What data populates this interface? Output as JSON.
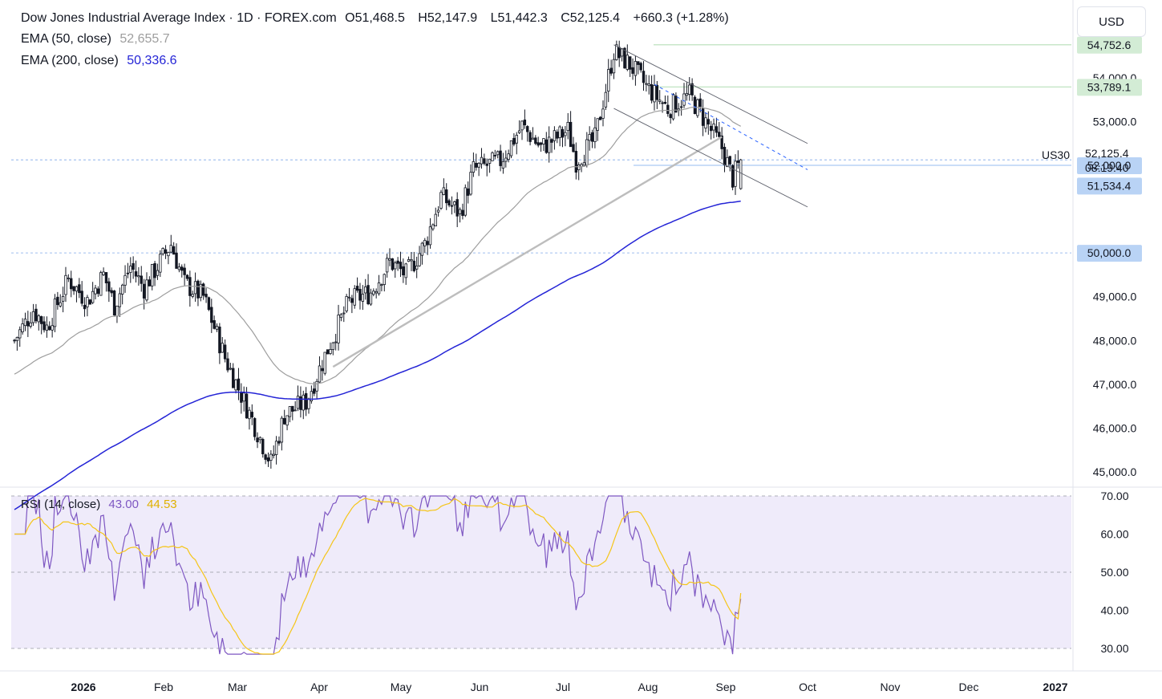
{
  "header": {
    "title": "Dow Jones Industrial Average Index · 1D · FOREX.com",
    "open_label": "O",
    "open": "51,468.5",
    "high_label": "H",
    "high": "52,147.9",
    "low_label": "L",
    "low": "51,442.3",
    "close_label": "C",
    "close": "52,125.4",
    "change": "+660.3 (+1.28%)",
    "currency_button": "USD"
  },
  "indicators": {
    "ema50": {
      "label": "EMA (50, close)",
      "value": "52,655.7",
      "color": "#9e9e9e"
    },
    "ema200": {
      "label": "EMA (200, close)",
      "value": "50,336.6",
      "color": "#2424d6"
    },
    "rsi": {
      "label": "RSI (14, close)",
      "value": "43.00",
      "ma_value": "44.53",
      "color": "#7e57c2",
      "ma_color": "#f2c94c"
    }
  },
  "colors": {
    "candle": "#131722",
    "ema50": "#9e9e9e",
    "ema200": "#2424d6",
    "rsi": "#7e57c2",
    "rsi_ma": "#f5c518",
    "rsi_band": "#efebfa",
    "green_tag": "#d3ecd5",
    "blue_tag": "#b9d3f5",
    "channel": "#5d606b",
    "dashed_trend": "#2962ff"
  },
  "chart_data": {
    "type": "candlestick",
    "symbol": "US30",
    "timeframe": "1D",
    "price_axis": {
      "ticks": [
        "54,000.0",
        "53,000.0",
        "52,000.0",
        "49,000.0",
        "48,000.0",
        "47,000.0",
        "46,000.0",
        "45,000.0"
      ],
      "tick_values": [
        54000,
        53000,
        52000,
        49000,
        48000,
        47000,
        46000,
        45000
      ],
      "range": [
        44800,
        55100
      ]
    },
    "time_axis": {
      "labels": [
        "2026",
        "Feb",
        "Mar",
        "Apr",
        "May",
        "Jun",
        "Jul",
        "Aug",
        "Sep",
        "Oct",
        "Nov",
        "Dec",
        "2027"
      ],
      "bold": [
        "2026",
        "2027"
      ]
    },
    "price_tags": [
      {
        "label": "54,752.6",
        "value": 54752.6,
        "style": "green"
      },
      {
        "label": "53,789.1",
        "value": 53789.1,
        "style": "green"
      },
      {
        "label": "52,000.0",
        "value": 52000,
        "style": "blue"
      },
      {
        "label": "51,534.4",
        "value": 51534.4,
        "style": "blue"
      },
      {
        "label": "50,000.0",
        "value": 50000,
        "style": "blue"
      }
    ],
    "current_price": {
      "value": "52,125.4",
      "countdown": "08:19:40",
      "symbol": "US30",
      "level": 52125.4
    },
    "horizontal_levels": [
      52125.4,
      50000
    ],
    "ema50_last": 52655.7,
    "ema200_last": 50336.6,
    "rsi": {
      "ticks": [
        "70.00",
        "60.00",
        "50.00",
        "40.00",
        "30.00"
      ],
      "tick_values": [
        70,
        60,
        50,
        40,
        30
      ],
      "range": [
        28,
        72
      ],
      "last": 43.0,
      "ma_last": 44.53
    },
    "approx_monthly_path": [
      {
        "month": "Jan",
        "close_range": [
          47600,
          49500
        ]
      },
      {
        "month": "Feb",
        "close_range": [
          48700,
          50300
        ]
      },
      {
        "month": "Mar",
        "close_range": [
          45000,
          48500
        ]
      },
      {
        "month": "Apr",
        "close_range": [
          46700,
          49300
        ]
      },
      {
        "month": "May",
        "close_range": [
          48800,
          50900
        ]
      },
      {
        "month": "Jun",
        "close_range": [
          49700,
          52400
        ]
      },
      {
        "month": "Jul",
        "close_range": [
          51700,
          53100
        ]
      },
      {
        "month": "Aug",
        "close_range": [
          52300,
          54700
        ]
      },
      {
        "month": "Sep",
        "close_range": [
          51500,
          53800
        ]
      }
    ]
  }
}
